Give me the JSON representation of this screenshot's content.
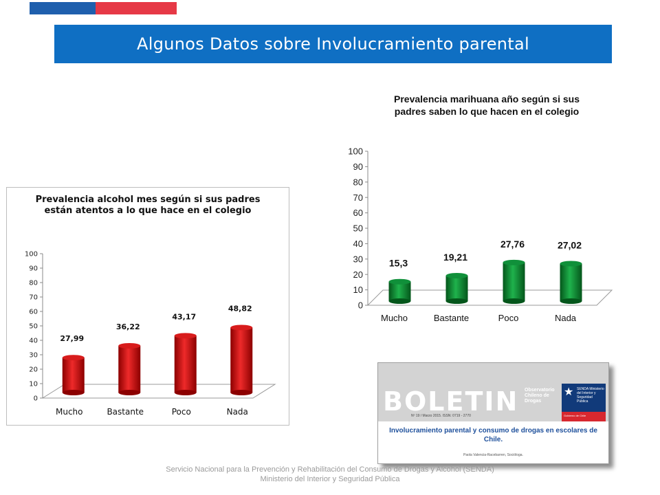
{
  "header": {
    "title": "Algunos Datos sobre Involucramiento parental"
  },
  "colors": {
    "flag_blue": "#1f5fad",
    "flag_red": "#e63946",
    "title_bar": "#0f6fc3",
    "alcohol_bars": "#c40000",
    "marihuana_bars": "#0a8a2e"
  },
  "chart_data": [
    {
      "type": "bar",
      "title": "Prevalencia alcohol  mes según si sus padres están atentos a lo que hace en el colegio",
      "title_lines": [
        "Prevalencia alcohol  mes según si sus padres",
        "están atentos a lo que hace en el colegio"
      ],
      "categories": [
        "Mucho",
        "Bastante",
        "Poco",
        "Nada"
      ],
      "values": [
        27.99,
        36.22,
        43.17,
        48.82
      ],
      "value_labels": [
        "27,99",
        "36,22",
        "43,17",
        "48,82"
      ],
      "ylim": [
        0,
        100
      ],
      "yticks": [
        0,
        10,
        20,
        30,
        40,
        50,
        60,
        70,
        80,
        90,
        100
      ],
      "xlabel": "",
      "ylabel": "",
      "grid": false,
      "legend": "none",
      "style": "3d-cylinder"
    },
    {
      "type": "bar",
      "title": "Prevalencia marihuana año según si sus padres saben lo que hacen en el colegio",
      "title_lines": [
        "Prevalencia marihuana año según si sus",
        "padres saben lo que hacen en el colegio"
      ],
      "categories": [
        "Mucho",
        "Bastante",
        "Poco",
        "Nada"
      ],
      "values": [
        15.3,
        19.21,
        27.76,
        27.02
      ],
      "value_labels": [
        "15,3",
        "19,21",
        "27,76",
        "27,02"
      ],
      "ylim": [
        0,
        100
      ],
      "yticks": [
        0,
        10,
        20,
        30,
        40,
        50,
        60,
        70,
        80,
        90,
        100
      ],
      "xlabel": "",
      "ylabel": "",
      "grid": false,
      "legend": "none",
      "style": "3d-cylinder"
    }
  ],
  "boletin": {
    "word": "BOLETIN",
    "number": "Nº 19 / Marzo 2015. ISSN: 0719 - 2770",
    "observatorio": "Observatorio Chileno de Drogas",
    "logo_star": "★",
    "logo_text": "SENDA Ministerio del Interior y Seguridad Pública",
    "logo_gob": "Gobierno de Chile",
    "headline": "Involucramiento parental y consumo de drogas en escolares de Chile.",
    "author": "Paola Valencia-Racebarren, Socióloga."
  },
  "footer": {
    "line1": "Servicio Nacional para la Prevención y Rehabilitación del Consumo de Drogas y Alcohol (SENDA)",
    "line2": "Ministerio del Interior y Seguridad Pública"
  }
}
